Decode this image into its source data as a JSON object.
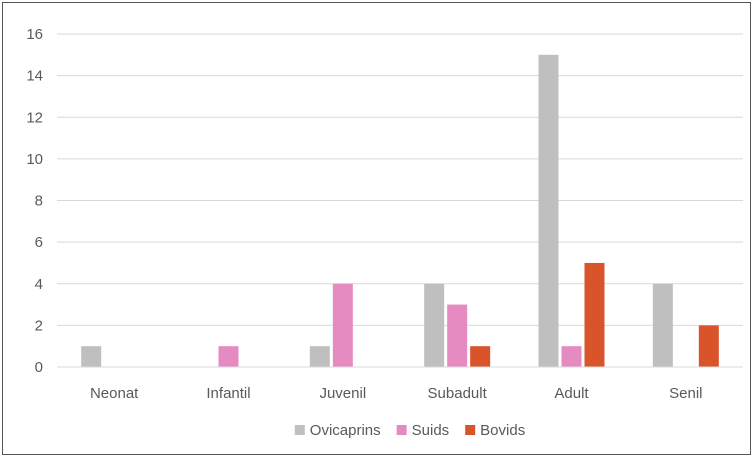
{
  "chart_data": {
    "type": "bar",
    "title": "",
    "xlabel": "",
    "ylabel": "",
    "categories": [
      "Neonat",
      "Infantil",
      "Juvenil",
      "Subadult",
      "Adult",
      "Senil"
    ],
    "series": [
      {
        "name": "Ovicaprins",
        "color": "#bfbfbf",
        "values": [
          1,
          0,
          1,
          4,
          15,
          4
        ]
      },
      {
        "name": "Suids",
        "color": "#e58bc2",
        "values": [
          0,
          1,
          4,
          3,
          1,
          0
        ]
      },
      {
        "name": "Bovids",
        "color": "#d9542b",
        "values": [
          0,
          0,
          0,
          1,
          5,
          2
        ]
      }
    ],
    "ylim": [
      0,
      16
    ],
    "yticks": [
      0,
      2,
      4,
      6,
      8,
      10,
      12,
      14,
      16
    ],
    "grid": true,
    "legend_position": "bottom"
  }
}
